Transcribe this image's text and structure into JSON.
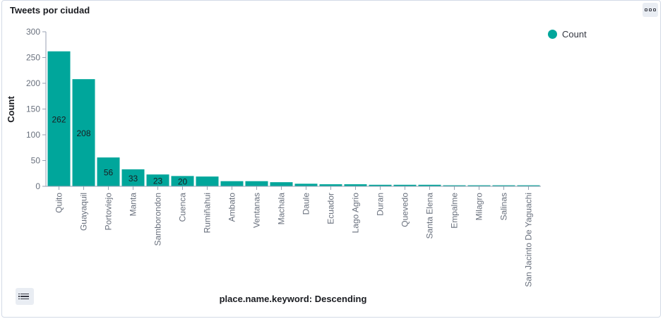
{
  "panel": {
    "title": "Tweets por ciudad"
  },
  "legend": {
    "entries": [
      {
        "label": "Count",
        "color": "#00a69b"
      }
    ]
  },
  "icons": {
    "options": "options-icon",
    "legend_toggle": "list-icon"
  },
  "chart_data": {
    "type": "bar",
    "title": "Tweets por ciudad",
    "xlabel": "place.name.keyword: Descending",
    "ylabel": "Count",
    "ylim": [
      0,
      300
    ],
    "yticks": [
      0,
      50,
      100,
      150,
      200,
      250,
      300
    ],
    "grid": false,
    "legend_position": "top-right",
    "bar_color": "#00a69b",
    "categories": [
      "Quito",
      "Guayaquil",
      "Portoviejo",
      "Manta",
      "Samborondon",
      "Cuenca",
      "Rumiñahui",
      "Ambato",
      "Ventanas",
      "Machala",
      "Daule",
      "Ecuador",
      "Lago Agrio",
      "Duran",
      "Quevedo",
      "Santa Elena",
      "Empalme",
      "Milagro",
      "Salinas",
      "San Jacinto De Yaguachi"
    ],
    "series": [
      {
        "name": "Count",
        "values": [
          262,
          208,
          56,
          33,
          23,
          20,
          19,
          10,
          10,
          8,
          5,
          4,
          4,
          3,
          3,
          3,
          2,
          2,
          2,
          2
        ]
      }
    ],
    "data_labels": [
      262,
      208,
      56,
      33,
      23,
      20,
      null,
      null,
      null,
      null,
      null,
      null,
      null,
      null,
      null,
      null,
      null,
      null,
      null,
      null
    ]
  }
}
